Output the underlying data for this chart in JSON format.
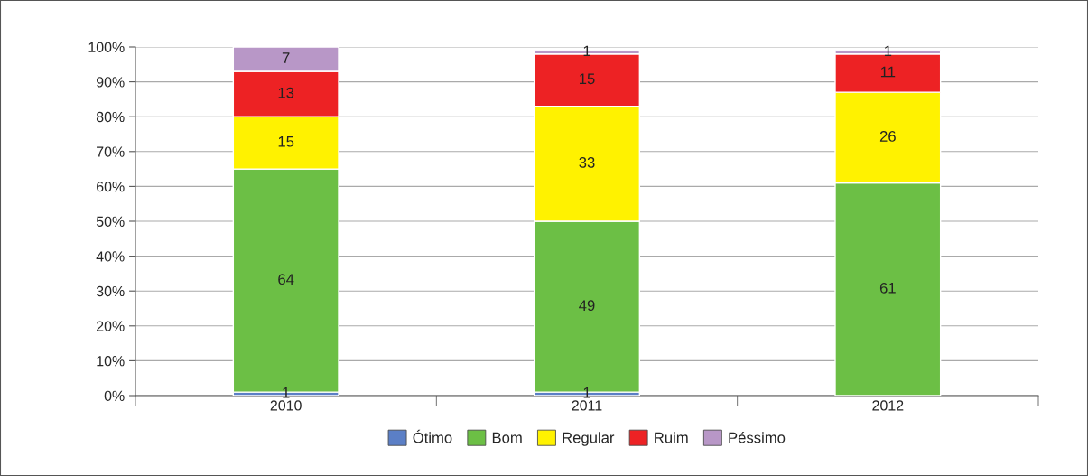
{
  "chart_data": {
    "type": "bar",
    "stacked": true,
    "categories": [
      "2010",
      "2011",
      "2012"
    ],
    "series": [
      {
        "name": "Ótimo",
        "color": "#5b7fc6",
        "values": [
          1,
          1,
          null
        ]
      },
      {
        "name": "Bom",
        "color": "#6cbf45",
        "values": [
          64,
          49,
          61
        ]
      },
      {
        "name": "Regular",
        "color": "#fff200",
        "values": [
          15,
          33,
          26
        ]
      },
      {
        "name": "Ruim",
        "color": "#ed2224",
        "values": [
          13,
          15,
          11
        ]
      },
      {
        "name": "Péssimo",
        "color": "#b897c7",
        "values": [
          7,
          1,
          1
        ]
      }
    ],
    "ylim": [
      0,
      100
    ],
    "yticks": [
      {
        "value": 0,
        "label": "0%"
      },
      {
        "value": 10,
        "label": "10%"
      },
      {
        "value": 20,
        "label": "20%"
      },
      {
        "value": 30,
        "label": "30%"
      },
      {
        "value": 40,
        "label": "40%"
      },
      {
        "value": 50,
        "label": "50%"
      },
      {
        "value": 60,
        "label": "60%"
      },
      {
        "value": 70,
        "label": "70%"
      },
      {
        "value": 80,
        "label": "80%"
      },
      {
        "value": 90,
        "label": "90%"
      },
      {
        "value": 100,
        "label": "100%"
      }
    ],
    "grid": "y",
    "legend": "bottom",
    "data_labels": true
  }
}
